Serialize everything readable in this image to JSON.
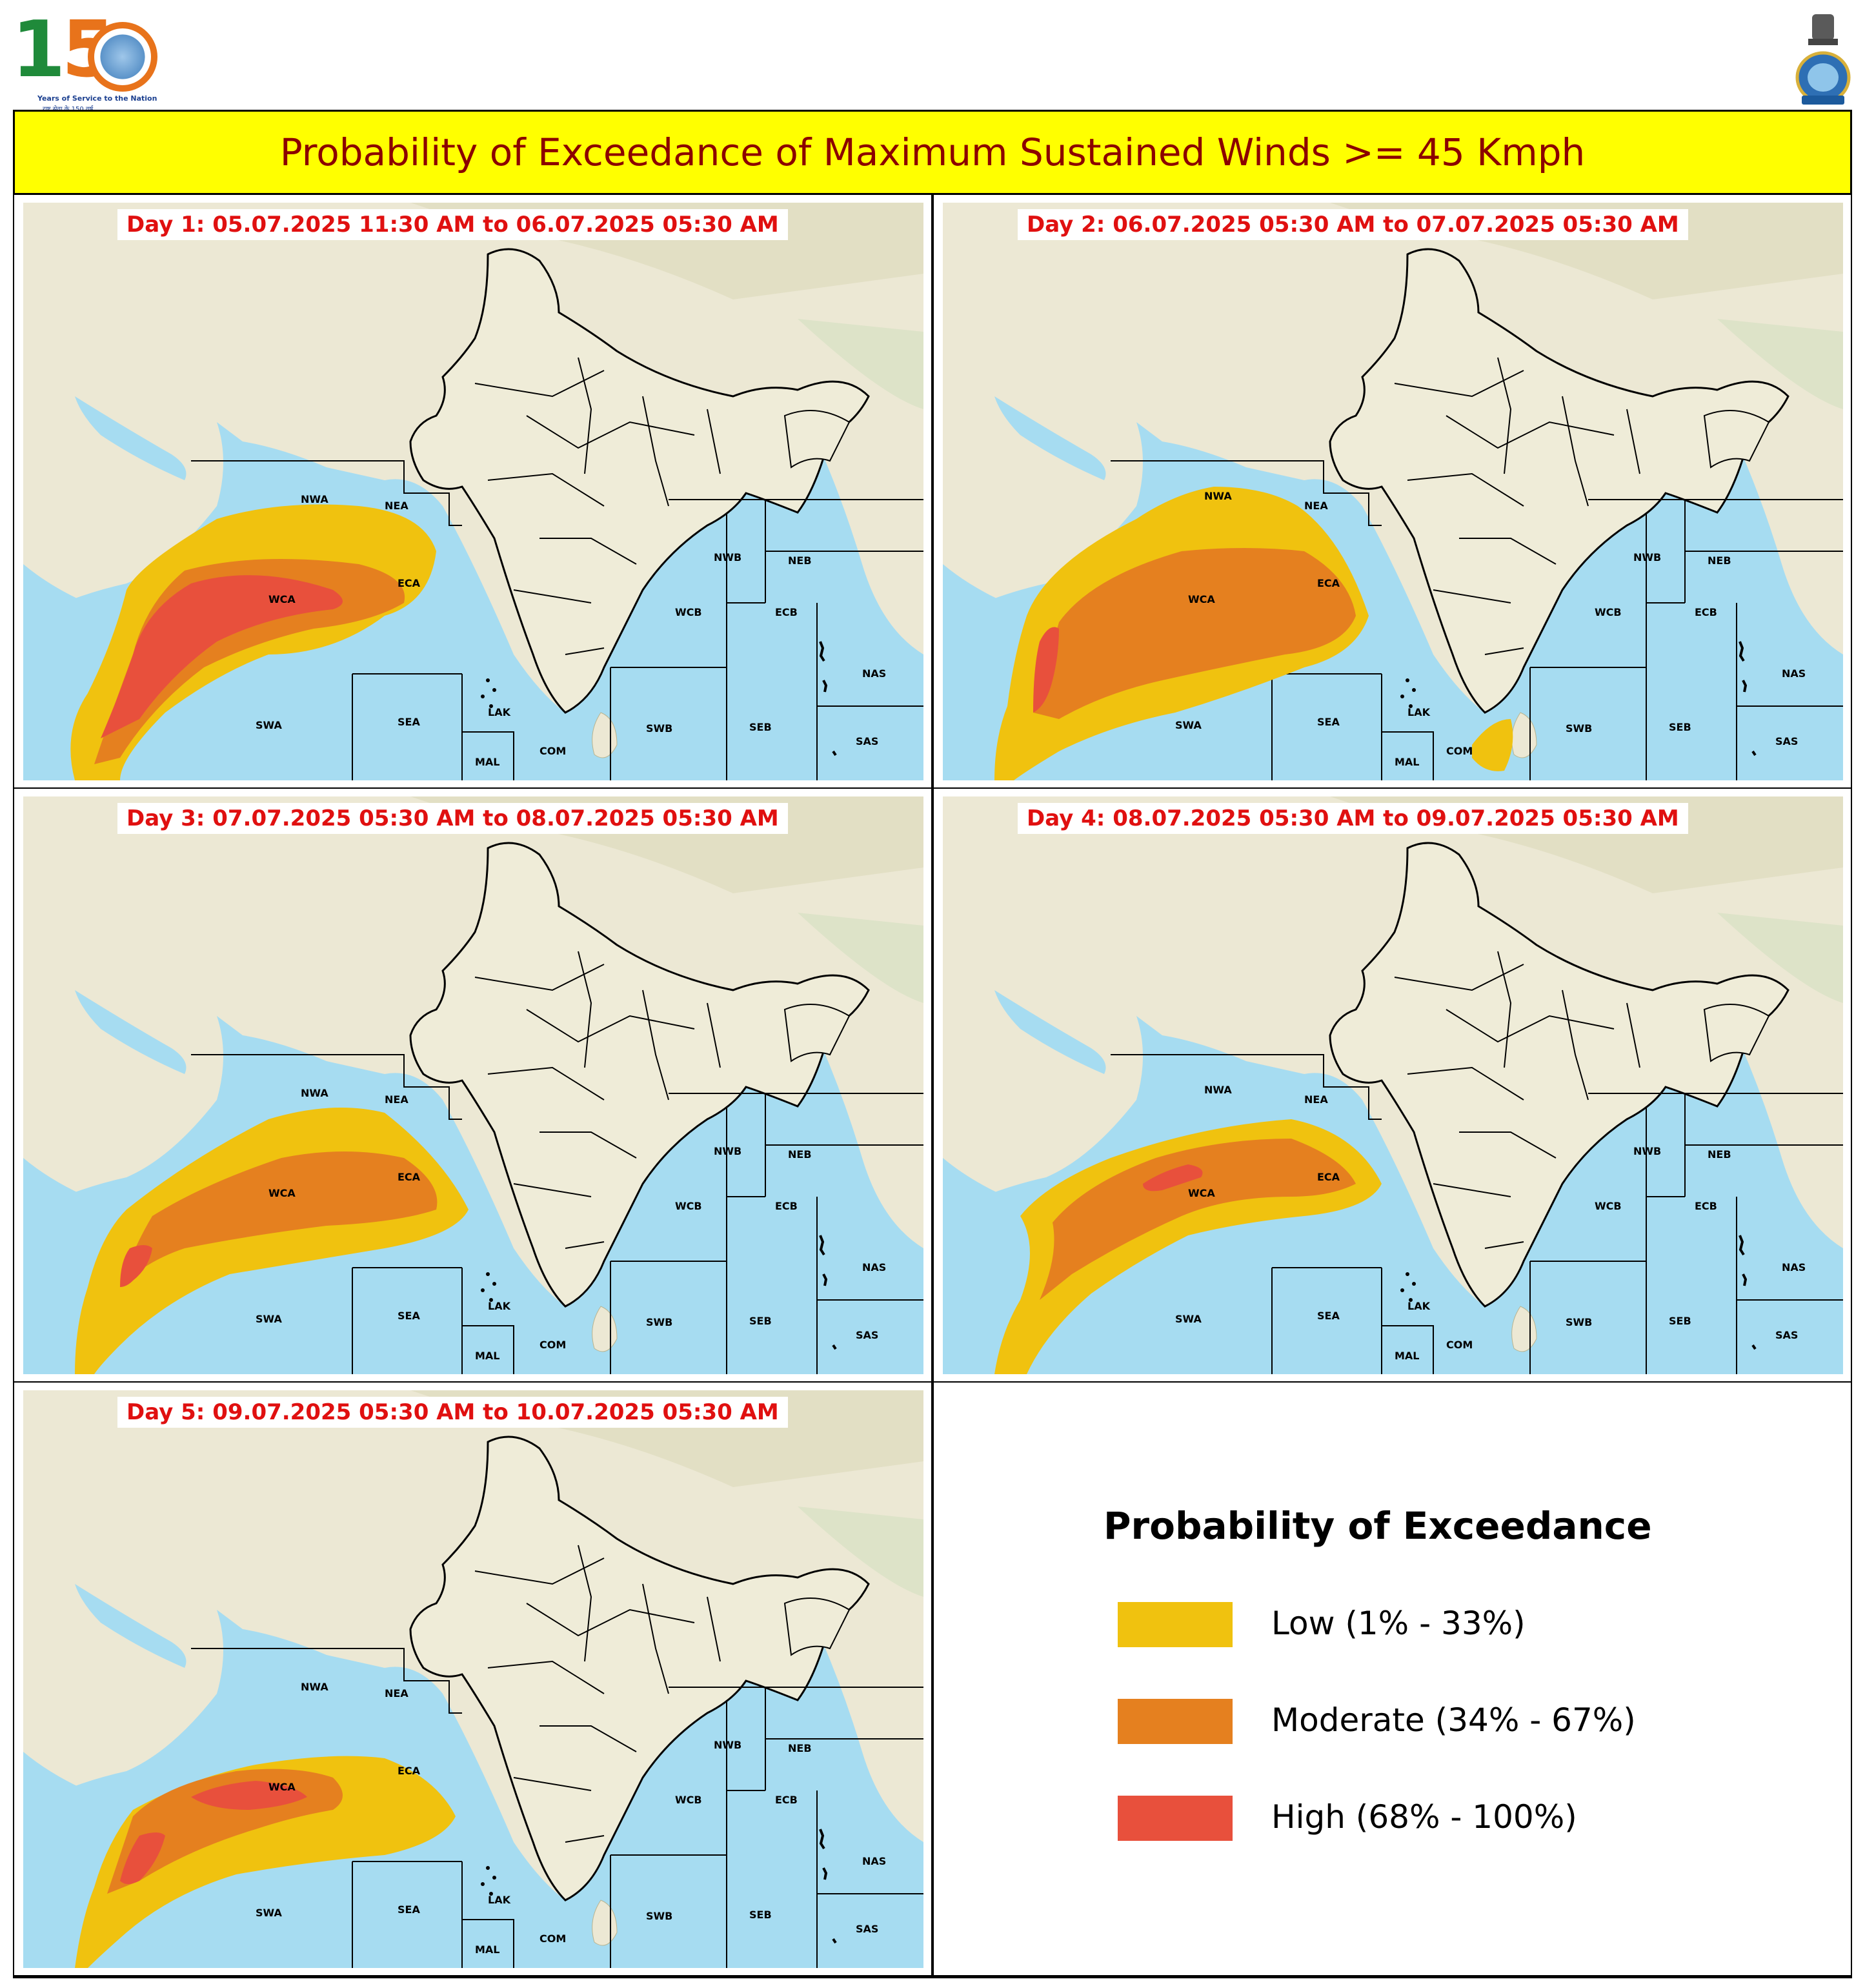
{
  "header": {
    "logo_number": "150",
    "logo_tagline": "Years of Service to the Nation",
    "logo_tagline_hindi": "राष्ट्र सेवा के 150 वर्ष",
    "logo_years": "1875 – 2025",
    "title": "Probability of Exceedance of Maximum Sustained Winds >= 45 Kmph"
  },
  "colors": {
    "title_bg": "#ffff00",
    "title_text": "#8b0000",
    "day_label_text": "#e01010",
    "low": "#f0c20f",
    "moderate": "#e5801f",
    "high": "#e8503c",
    "sea": "#a6dcf1",
    "land": "#ece8d4"
  },
  "panels": [
    {
      "day_label": "Day 1: 05.07.2025 11:30 AM to 06.07.2025 05:30 AM",
      "low": true,
      "moderate": true,
      "high": "strong-wca",
      "sri_lanka": false
    },
    {
      "day_label": "Day 2: 06.07.2025 05:30 AM to 07.07.2025 05:30 AM",
      "low": true,
      "moderate": true,
      "high": "yemen-coast",
      "sri_lanka": true
    },
    {
      "day_label": "Day 3: 07.07.2025 05:30 AM to 08.07.2025 05:30 AM",
      "low": true,
      "moderate": true,
      "high": "yemen-coast-small",
      "sri_lanka": false
    },
    {
      "day_label": "Day 4: 08.07.2025 05:30 AM to 09.07.2025 05:30 AM",
      "low": true,
      "moderate": true,
      "high": "wca-small",
      "sri_lanka": false
    },
    {
      "day_label": "Day 5: 09.07.2025 05:30 AM to 10.07.2025 05:30 AM",
      "low": true,
      "moderate": true,
      "high": "wca-and-coast",
      "sri_lanka": false
    }
  ],
  "regions": {
    "nwa": "NWA",
    "nea": "NEA",
    "wca": "WCA",
    "eca": "ECA",
    "swa": "SWA",
    "sea": "SEA",
    "lak": "LAK",
    "mal": "MAL",
    "com": "COM",
    "swb": "SWB",
    "seb": "SEB",
    "nwb": "NWB",
    "neb": "NEB",
    "wcb": "WCB",
    "ecb": "ECB",
    "nas": "NAS",
    "sas": "SAS"
  },
  "legend": {
    "title": "Probability of Exceedance",
    "low": "Low (1% - 33%)",
    "moderate": "Moderate (34% - 67%)",
    "high": "High (68% - 100%)"
  }
}
